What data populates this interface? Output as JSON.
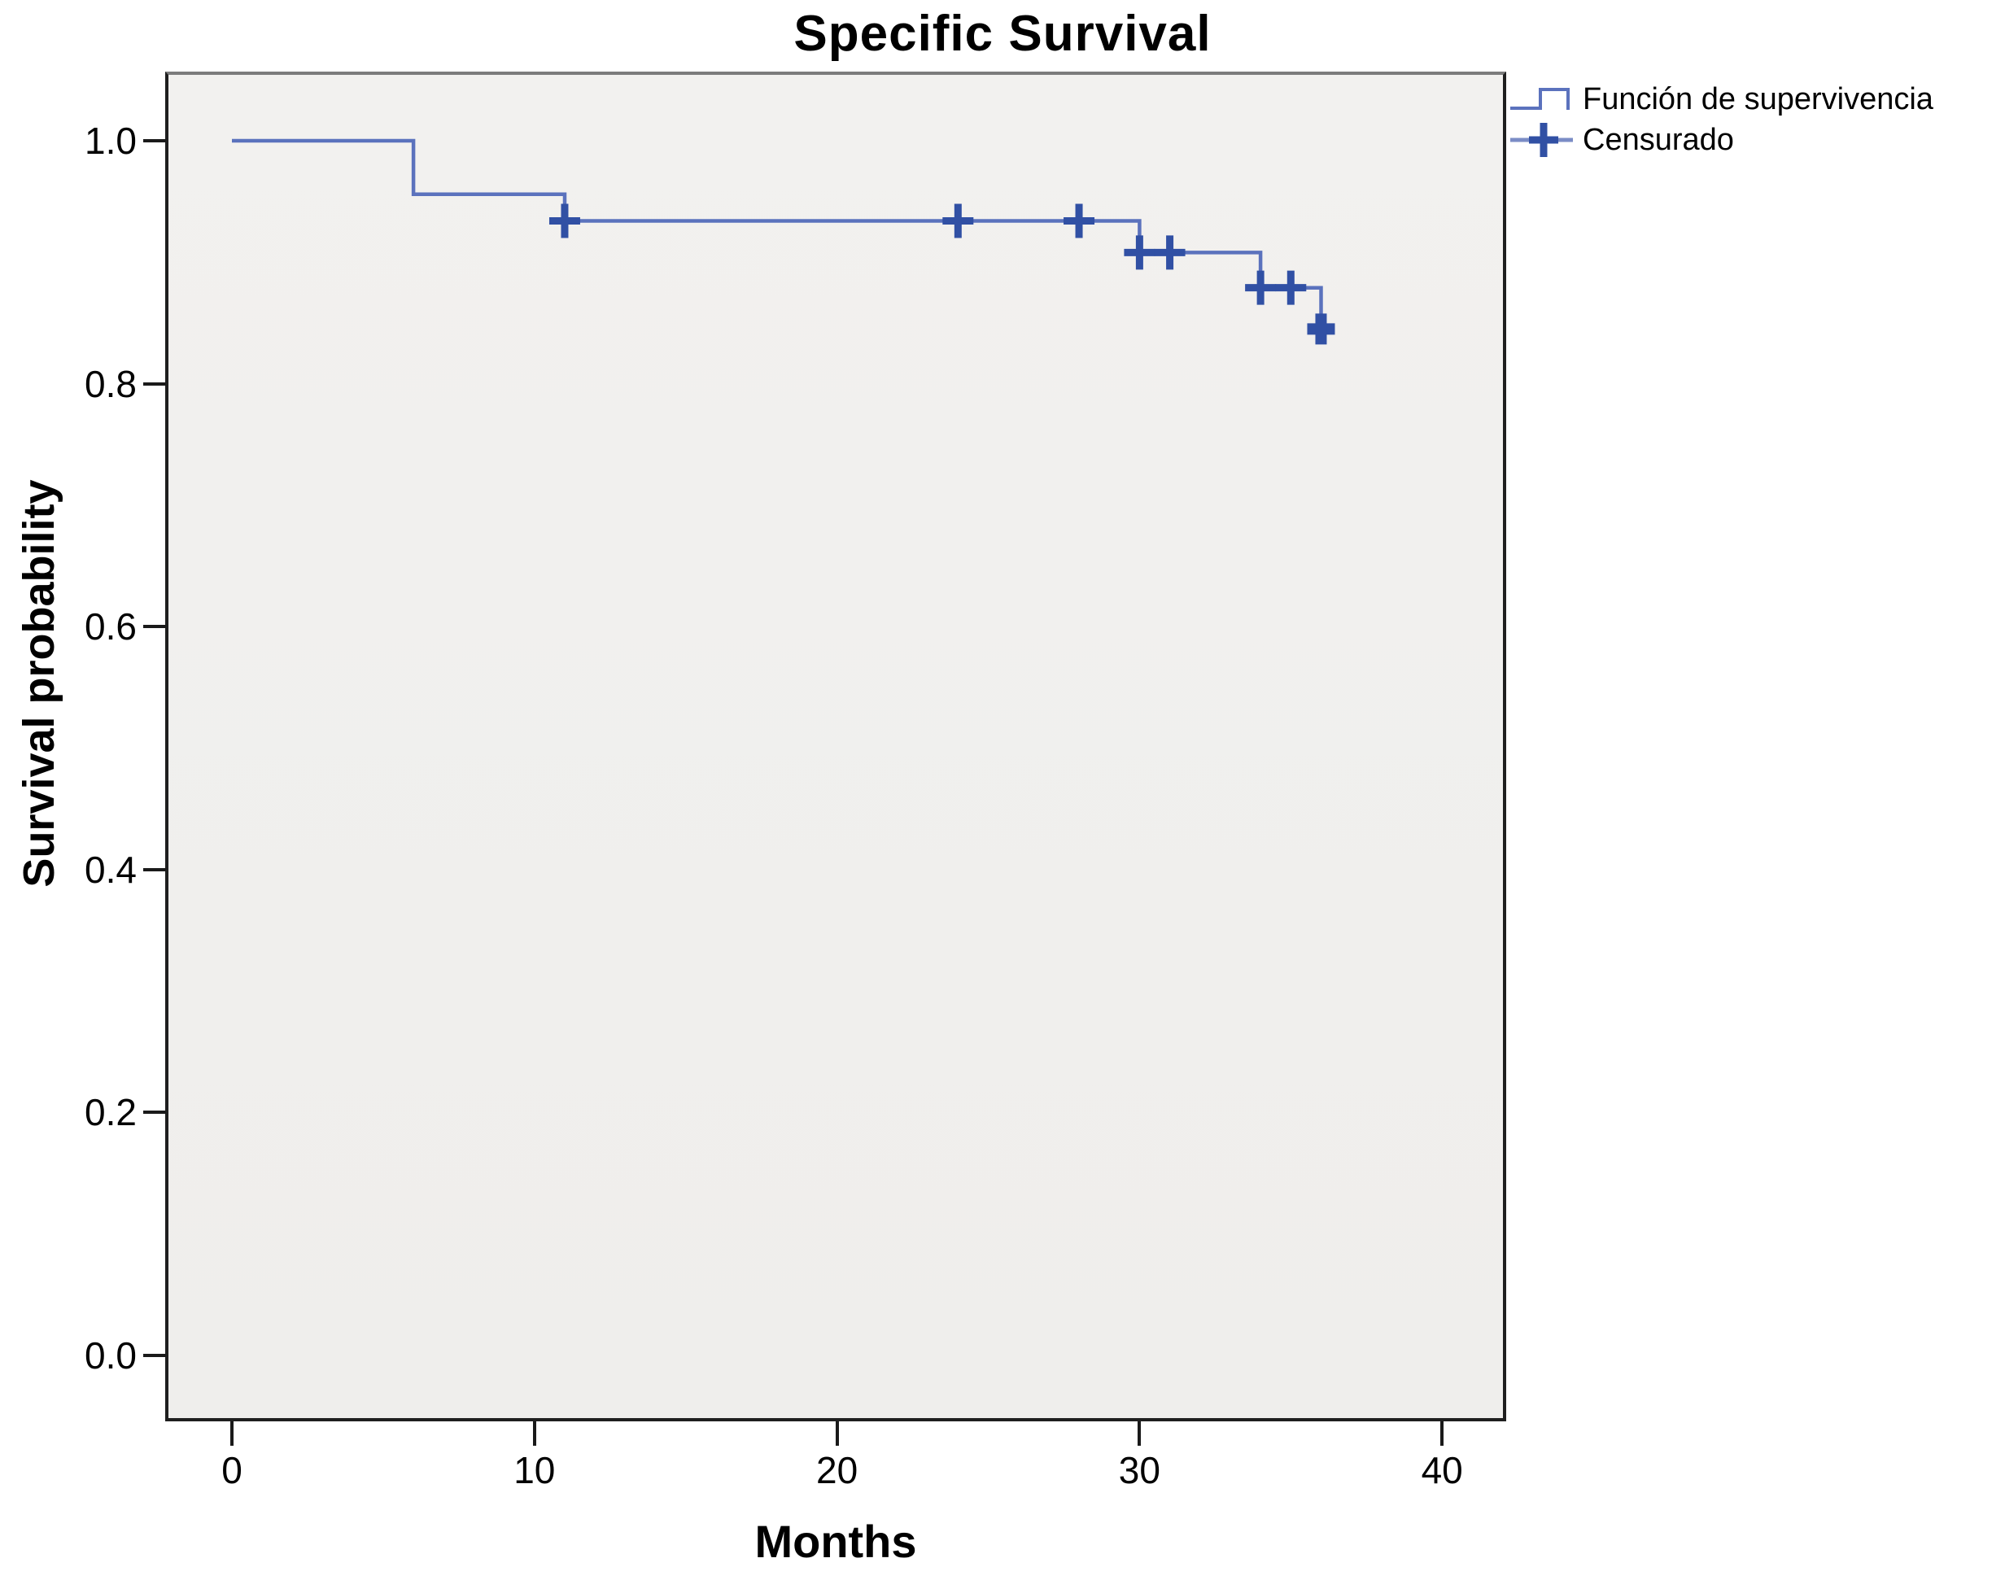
{
  "chart_data": {
    "type": "line",
    "subtype": "kaplan-meier-step",
    "title": "Specific Survival",
    "xlabel": "Months",
    "ylabel": "Survival probability",
    "xlim": [
      -2.2,
      42.2
    ],
    "ylim": [
      -0.054,
      1.057
    ],
    "grid": false,
    "legend_position": "top-right-outside",
    "x_axis": {
      "label": "Months",
      "tick_values": [
        0,
        10,
        20,
        30,
        40
      ],
      "tick_labels": [
        "0",
        "10",
        "20",
        "30",
        "40"
      ]
    },
    "y_axis": {
      "label": "Survival probability",
      "tick_values": [
        0.0,
        0.2,
        0.4,
        0.6,
        0.8,
        1.0
      ],
      "tick_labels": [
        "0.0",
        "0.2",
        "0.4",
        "0.6",
        "0.8",
        "1.0"
      ]
    },
    "series": [
      {
        "name": "Función de supervivencia",
        "step_points": [
          [
            0,
            1.0
          ],
          [
            6,
            0.956
          ],
          [
            11,
            0.934
          ],
          [
            30,
            0.908
          ],
          [
            34,
            0.879
          ],
          [
            36,
            0.845
          ]
        ],
        "end_time": 36.3
      }
    ],
    "censored": {
      "name": "Censurado",
      "points": [
        [
          11,
          0.934
        ],
        [
          24,
          0.934
        ],
        [
          28,
          0.934
        ],
        [
          30,
          0.908
        ],
        [
          31,
          0.908
        ],
        [
          34,
          0.879
        ],
        [
          35,
          0.879
        ],
        [
          36,
          0.845
        ]
      ],
      "bold_last": true
    },
    "legend": [
      {
        "label": "Función de supervivencia",
        "symbol": "step-line"
      },
      {
        "label": "Censurado",
        "symbol": "censor-plus"
      }
    ],
    "colors": {
      "curve": "#5b72bd",
      "curve_light": "#8293c8",
      "censor": "#3150a4",
      "plot_bg": "#f0efed",
      "border": "#1f1f1f",
      "border_top": "#7c7c7c",
      "text": "#000000"
    }
  }
}
